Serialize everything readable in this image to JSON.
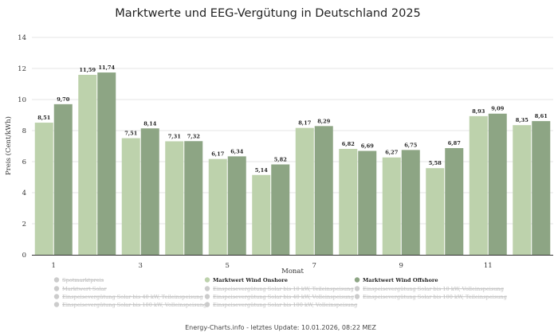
{
  "chart_data": {
    "type": "bar",
    "title": "Marktwerte und EEG-Vergütung in Deutschland 2025",
    "xlabel": "Monat",
    "ylabel": "Preis (Cent/kWh)",
    "ylim": [
      0,
      14
    ],
    "yticks": [
      0,
      2,
      4,
      6,
      8,
      10,
      12,
      14
    ],
    "categories": [
      "1",
      "2",
      "3",
      "4",
      "5",
      "6",
      "7",
      "8",
      "9",
      "10",
      "11",
      "12"
    ],
    "x_tick_labels": [
      "1",
      "",
      "3",
      "",
      "5",
      "",
      "7",
      "",
      "9",
      "",
      "11",
      ""
    ],
    "grid": true,
    "legend_position": "bottom",
    "series": [
      {
        "name": "Marktwert Wind Onshore",
        "color": "#bdd2ac",
        "values": [
          8.51,
          11.59,
          7.51,
          7.31,
          6.17,
          5.14,
          8.17,
          6.82,
          6.27,
          5.58,
          8.93,
          8.35
        ],
        "labels": [
          "8,51",
          "11,59",
          "7,51",
          "7,31",
          "6,17",
          "5,14",
          "8,17",
          "6,82",
          "6,27",
          "5,58",
          "8,93",
          "8,35"
        ]
      },
      {
        "name": "Marktwert Wind Offshore",
        "color": "#8da584",
        "values": [
          9.7,
          11.74,
          8.14,
          7.32,
          6.34,
          5.82,
          8.29,
          6.69,
          6.75,
          6.87,
          9.09,
          8.61
        ],
        "labels": [
          "9,70",
          "11,74",
          "8,14",
          "7,32",
          "6,34",
          "5,82",
          "8,29",
          "6,69",
          "6,75",
          "6,87",
          "9,09",
          "8,61"
        ]
      }
    ],
    "legend": [
      {
        "label": "Spotmarktpreis",
        "color": "#cccccc",
        "active": false
      },
      {
        "label": "Marktwert Wind Onshore",
        "color": "#bdd2ac",
        "active": true
      },
      {
        "label": "Marktwert Wind Offshore",
        "color": "#8da584",
        "active": true
      },
      {
        "label": "Marktwert Solar",
        "color": "#cccccc",
        "active": false
      },
      {
        "label": "Einspeisevergütung Solar bis 10 kW, Teileinspeisung",
        "color": "#cccccc",
        "active": false
      },
      {
        "label": "Einspeisevergütung Solar bis 10 kW, Volleinspeisung",
        "color": "#cccccc",
        "active": false
      },
      {
        "label": "Einspeisevergütung Solar bis 40 kW, Teileinspeisung",
        "color": "#cccccc",
        "active": false
      },
      {
        "label": "Einspeisevergütung Solar bis 40 kW, Volleinspeisung",
        "color": "#cccccc",
        "active": false
      },
      {
        "label": "Einspeisevergütung Solar bis 100 kW, Teileinspeisung",
        "color": "#cccccc",
        "active": false
      },
      {
        "label": "Einspeisevergütung Solar bis 100 kW, Volleinspeisung",
        "color": "#cccccc",
        "active": false
      },
      {
        "label": "Einspeisevergütung Solar bis 100 kW, Volleinspeisung",
        "color": "#cccccc",
        "active": false
      }
    ]
  },
  "footer": "Energy-Charts.info - letztes Update: 10.01.2026, 08:22 MEZ"
}
